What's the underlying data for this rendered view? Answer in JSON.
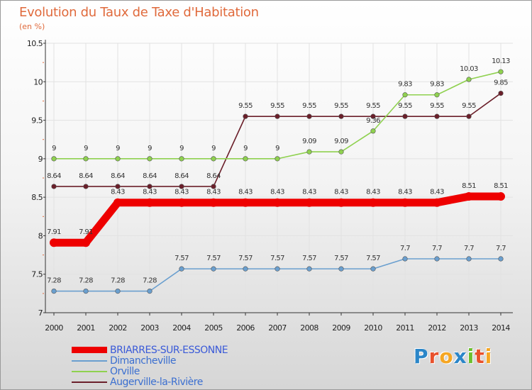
{
  "title": "Evolution du Taux de Taxe d'Habitation",
  "unit_label": "(en %)",
  "brand": {
    "letters": [
      "P",
      "r",
      "o",
      "x",
      "i",
      "t",
      "i"
    ],
    "colors": [
      "#2b86c8",
      "#e8512c",
      "#f5a623",
      "#2b86c8",
      "#6cbf2e",
      "#e8512c",
      "#f5a623"
    ]
  },
  "chart_data": {
    "type": "line",
    "title": "Evolution du Taux de Taxe d'Habitation",
    "ylabel": "(en %)",
    "xlabel": "",
    "x": [
      "2000",
      "2001",
      "2002",
      "2003",
      "2004",
      "2005",
      "2006",
      "2007",
      "2008",
      "2009",
      "2010",
      "2011",
      "2012",
      "2013",
      "2014"
    ],
    "ylim": [
      7,
      10.5
    ],
    "yticks": [
      "7",
      "7.5",
      "8",
      "8.5",
      "9",
      "9.5",
      "10",
      "10.5"
    ],
    "grid": true,
    "series": [
      {
        "name": "Augerville-la-Rivière",
        "color": "#6b1f2a",
        "values": [
          8.64,
          8.64,
          8.64,
          8.64,
          8.64,
          8.64,
          9.55,
          9.55,
          9.55,
          9.55,
          9.55,
          9.55,
          9.55,
          9.55,
          9.85
        ],
        "labels": [
          "8.64",
          "8.64",
          "8.64",
          "8.64",
          "8.64",
          "8.64",
          "9.55",
          "9.55",
          "9.55",
          "9.55",
          "9.55",
          "9.55",
          "9.55",
          "9.55",
          "9.85"
        ]
      },
      {
        "name": "Orville",
        "color": "#8fd14f",
        "values": [
          9,
          9,
          9,
          9,
          9,
          9,
          9,
          9,
          9.09,
          9.09,
          9.36,
          9.83,
          9.83,
          10.03,
          10.13
        ],
        "labels": [
          "9",
          "9",
          "9",
          "9",
          "9",
          "9",
          "9",
          "9",
          "9.09",
          "9.09",
          "9.36",
          "9.83",
          "9.83",
          "10.03",
          "10.13"
        ]
      },
      {
        "name": "Dimancheville",
        "color": "#6a9fcf",
        "values": [
          7.28,
          7.28,
          7.28,
          7.28,
          7.57,
          7.57,
          7.57,
          7.57,
          7.57,
          7.57,
          7.57,
          7.7,
          7.7,
          7.7,
          7.7
        ],
        "labels": [
          "7.28",
          "7.28",
          "7.28",
          "7.28",
          "7.57",
          "7.57",
          "7.57",
          "7.57",
          "7.57",
          "7.57",
          "7.57",
          "7.7",
          "7.7",
          "7.7",
          "7.7"
        ]
      },
      {
        "name": "BRIARRES-SUR-ESSONNE",
        "color": "#ee0000",
        "values": [
          7.91,
          7.91,
          8.43,
          8.43,
          8.43,
          8.43,
          8.43,
          8.43,
          8.43,
          8.43,
          8.43,
          8.43,
          8.43,
          8.51,
          8.51
        ],
        "labels": [
          "7.91",
          "7.91",
          "8.43",
          "8.43",
          "8.43",
          "8.43",
          "8.43",
          "8.43",
          "8.43",
          "8.43",
          "8.43",
          "8.43",
          "8.43",
          "8.51",
          "8.51"
        ]
      }
    ],
    "legend": [
      {
        "name": "BRIARRES-SUR-ESSONNE",
        "color": "#ee0000"
      },
      {
        "name": "Dimancheville",
        "color": "#6a9fcf"
      },
      {
        "name": "Orville",
        "color": "#8fd14f"
      },
      {
        "name": "Augerville-la-Rivière",
        "color": "#6b1f2a"
      }
    ]
  }
}
